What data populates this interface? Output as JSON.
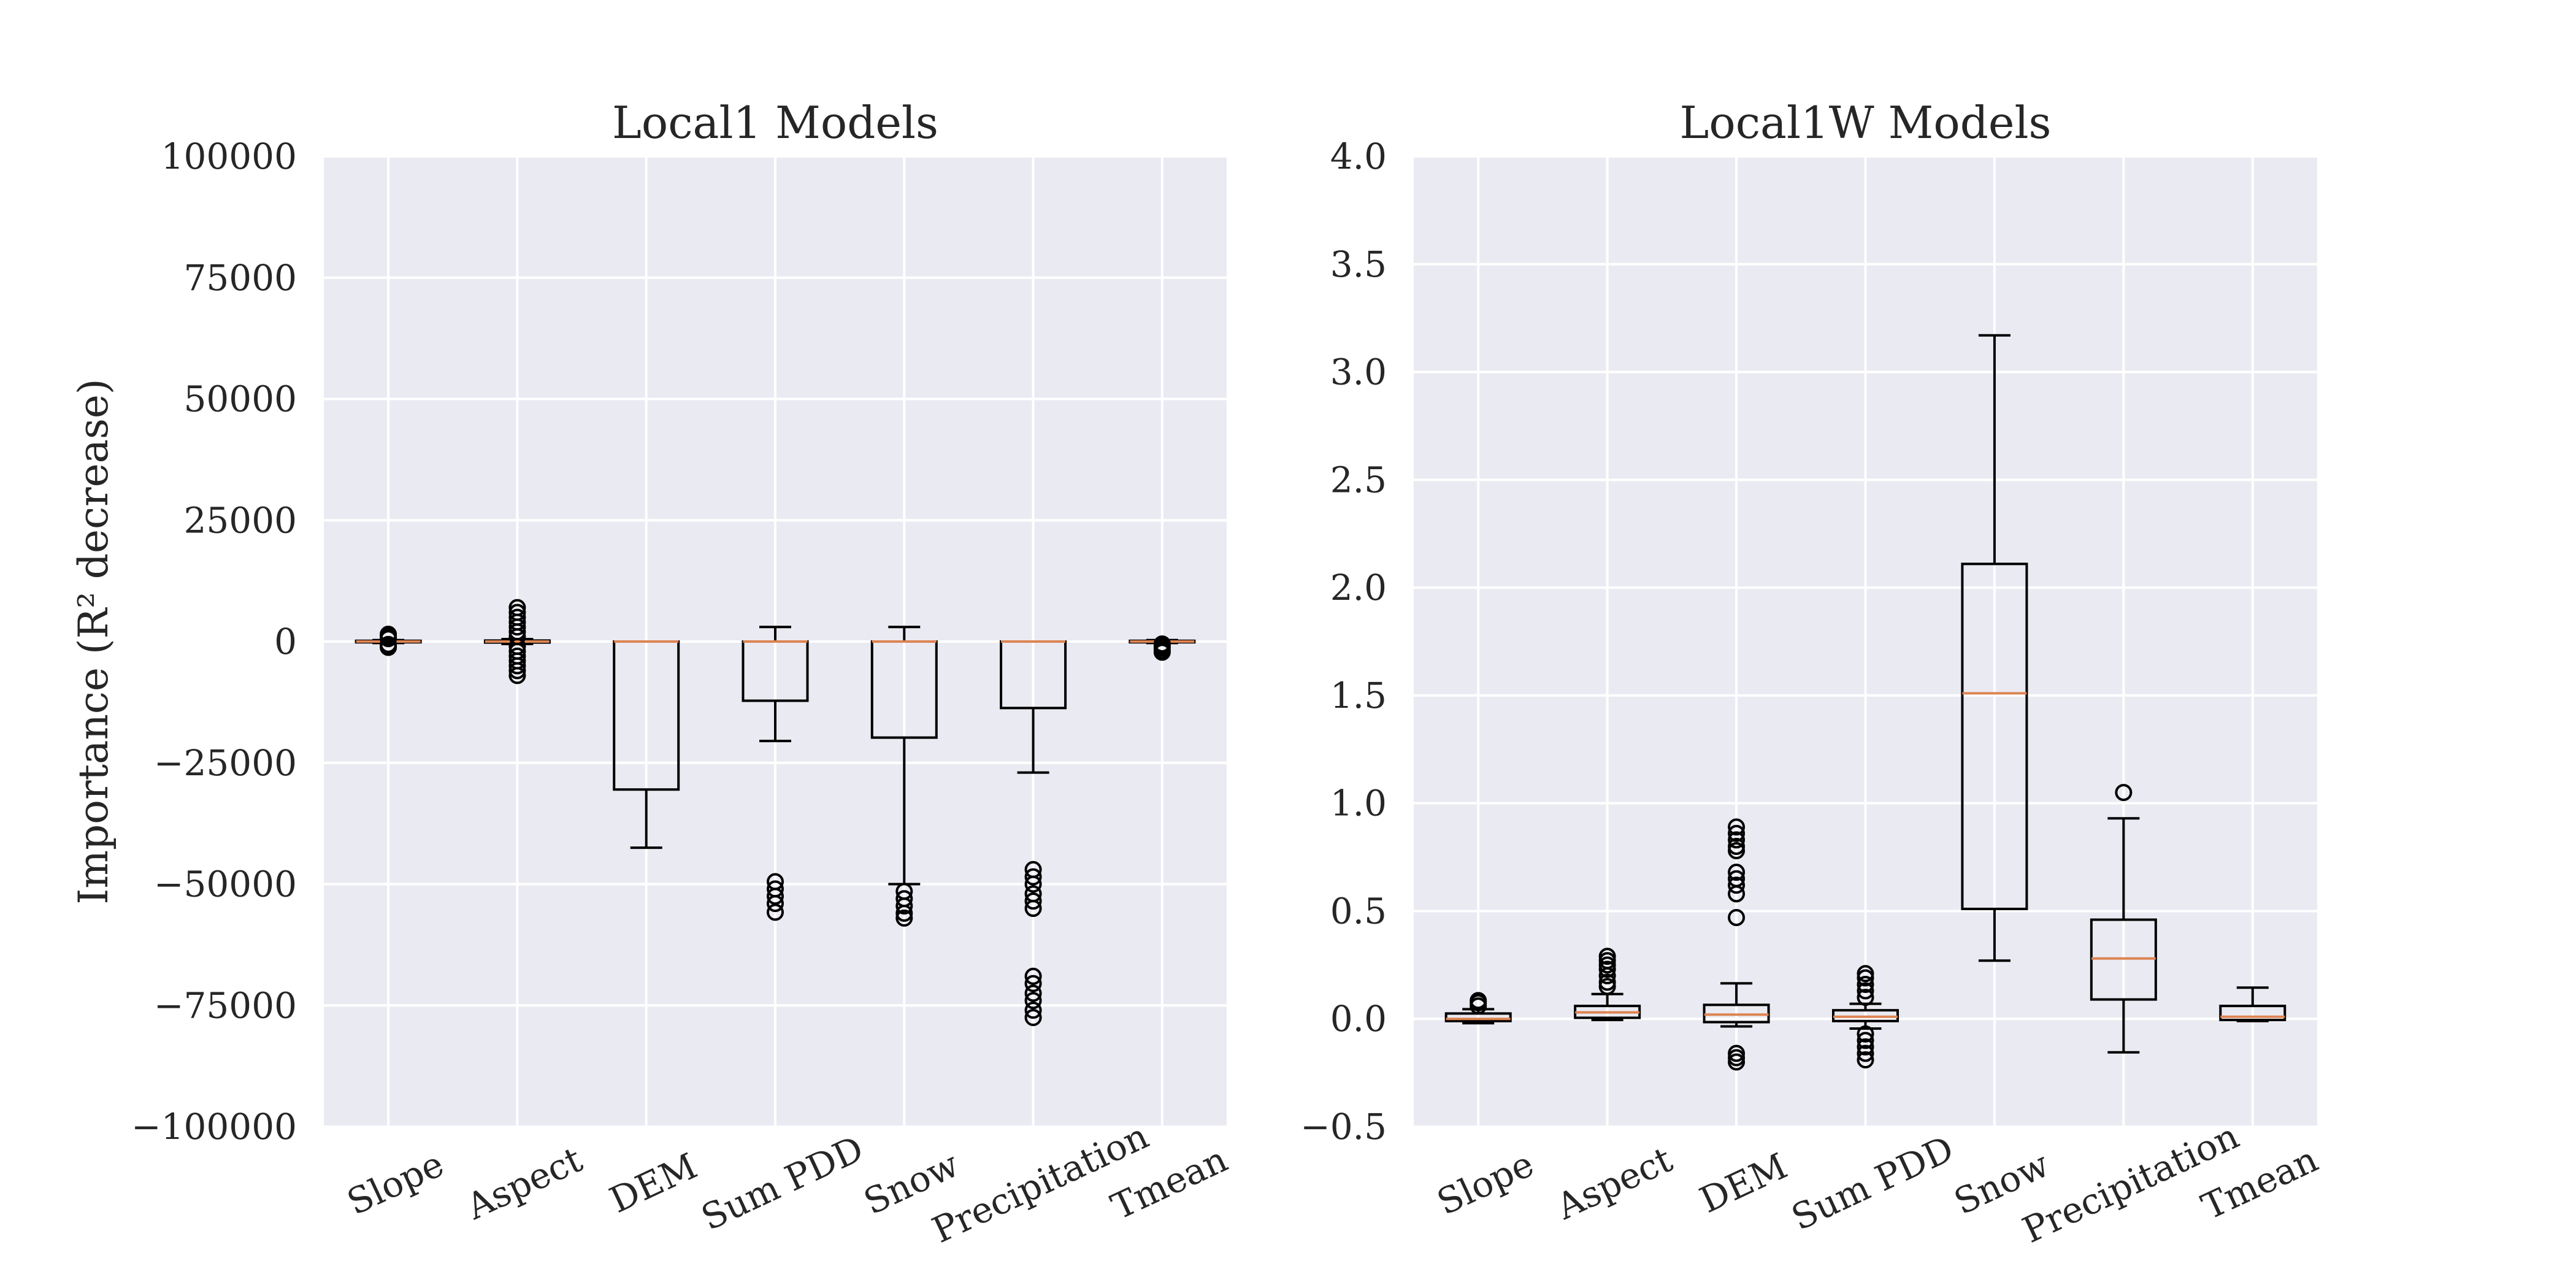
{
  "chart_data": [
    {
      "type": "box",
      "title": "Local1 Models",
      "ylabel": "Importance (R² decrease)",
      "ylim": [
        -100000,
        100000
      ],
      "yticks": [
        -100000,
        -75000,
        -50000,
        -25000,
        0,
        25000,
        50000,
        75000,
        100000
      ],
      "ytick_labels": [
        "−100000",
        "−75000",
        "−50000",
        "−25000",
        "0",
        "25000",
        "50000",
        "75000",
        "100000"
      ],
      "grid": true,
      "categories": [
        "Slope",
        "Aspect",
        "DEM",
        "Sum PDD",
        "Snow",
        "Precipitation",
        "Tmean"
      ],
      "boxes": [
        {
          "label": "Slope",
          "whislo": -300,
          "q1": -150,
          "med": 0,
          "q3": 150,
          "whishi": 300,
          "fliers": [
            -1200,
            -900,
            -600,
            600,
            900,
            1200,
            1500
          ]
        },
        {
          "label": "Aspect",
          "whislo": -500,
          "q1": -200,
          "med": 0,
          "q3": 200,
          "whishi": 500,
          "fliers": [
            -7000,
            -6000,
            -5000,
            -4000,
            -3000,
            -2000,
            -1000,
            1000,
            2000,
            3000,
            4000,
            5000,
            6000,
            7000
          ]
        },
        {
          "label": "DEM",
          "whislo": -42500,
          "q1": -30500,
          "med": 0,
          "q3": 0,
          "whishi": 0,
          "fliers": []
        },
        {
          "label": "Sum PDD",
          "whislo": -20500,
          "q1": -12200,
          "med": 0,
          "q3": 0,
          "whishi": 3000,
          "fliers": [
            -49500,
            -51000,
            -52500,
            -54000,
            -55800
          ]
        },
        {
          "label": "Snow",
          "whislo": -50000,
          "q1": -19800,
          "med": 0,
          "q3": 0,
          "whishi": 3000,
          "fliers": [
            -51500,
            -53000,
            -54500,
            -56000,
            -57000
          ]
        },
        {
          "label": "Precipitation",
          "whislo": -27000,
          "q1": -13700,
          "med": 0,
          "q3": 0,
          "whishi": 0,
          "fliers": [
            -47000,
            -48500,
            -50000,
            -52000,
            -53500,
            -55000,
            -69000,
            -70500,
            -72500,
            -74000,
            -76000,
            -77500
          ]
        },
        {
          "label": "Tmean",
          "whislo": -300,
          "q1": -150,
          "med": 0,
          "q3": 150,
          "whishi": 300,
          "fliers": [
            -2200,
            -1800,
            -1300,
            -900,
            -500
          ]
        }
      ]
    },
    {
      "type": "box",
      "title": "Local1W Models",
      "ylabel": "",
      "ylim": [
        -0.5,
        4.0
      ],
      "yticks": [
        -0.5,
        0.0,
        0.5,
        1.0,
        1.5,
        2.0,
        2.5,
        3.0,
        3.5,
        4.0
      ],
      "ytick_labels": [
        "−0.5",
        "0.0",
        "0.5",
        "1.0",
        "1.5",
        "2.0",
        "2.5",
        "3.0",
        "3.5",
        "4.0"
      ],
      "grid": true,
      "categories": [
        "Slope",
        "Aspect",
        "DEM",
        "Sum PDD",
        "Snow",
        "Precipitation",
        "Tmean"
      ],
      "boxes": [
        {
          "label": "Slope",
          "whislo": -0.02,
          "q1": -0.01,
          "med": 0.0,
          "q3": 0.025,
          "whishi": 0.045,
          "fliers": [
            0.06,
            0.075,
            0.085
          ]
        },
        {
          "label": "Aspect",
          "whislo": -0.005,
          "q1": 0.005,
          "med": 0.03,
          "q3": 0.06,
          "whishi": 0.115,
          "fliers": [
            0.15,
            0.17,
            0.2,
            0.23,
            0.25,
            0.27,
            0.29
          ]
        },
        {
          "label": "DEM",
          "whislo": -0.035,
          "q1": -0.015,
          "med": 0.02,
          "q3": 0.065,
          "whishi": 0.165,
          "fliers": [
            -0.2,
            -0.18,
            -0.16,
            0.47,
            0.58,
            0.62,
            0.65,
            0.68,
            0.78,
            0.8,
            0.83,
            0.86,
            0.89
          ]
        },
        {
          "label": "Sum PDD",
          "whislo": -0.045,
          "q1": -0.01,
          "med": 0.01,
          "q3": 0.04,
          "whishi": 0.07,
          "fliers": [
            -0.19,
            -0.16,
            -0.13,
            -0.1,
            -0.07,
            0.1,
            0.13,
            0.16,
            0.19,
            0.21
          ]
        },
        {
          "label": "Snow",
          "whislo": 0.27,
          "q1": 0.51,
          "med": 1.51,
          "q3": 2.11,
          "whishi": 3.17,
          "fliers": []
        },
        {
          "label": "Precipitation",
          "whislo": -0.155,
          "q1": 0.09,
          "med": 0.28,
          "q3": 0.46,
          "whishi": 0.93,
          "fliers": [
            1.05
          ]
        },
        {
          "label": "Tmean",
          "whislo": -0.01,
          "q1": -0.005,
          "med": 0.01,
          "q3": 0.06,
          "whishi": 0.145,
          "fliers": []
        }
      ]
    }
  ]
}
